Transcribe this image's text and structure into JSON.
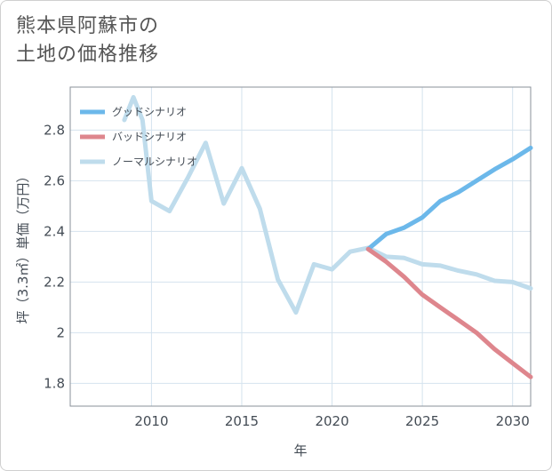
{
  "title_line1": "熊本県阿蘇市の",
  "title_line2": "土地の価格推移",
  "chart_data": {
    "type": "line",
    "xlabel": "年",
    "ylabel": "坪（3.3㎡）単価（万円）",
    "xlim": [
      2005.5,
      2031
    ],
    "ylim": [
      1.71,
      2.97
    ],
    "xticks": [
      2010,
      2015,
      2020,
      2025,
      2030
    ],
    "yticks": [
      1.8,
      2,
      2.2,
      2.4,
      2.6,
      2.8
    ],
    "ytick_labels": [
      "1.8",
      "2",
      "2.2",
      "2.4",
      "2.6",
      "2.8"
    ],
    "legend_position": "top-left",
    "series": [
      {
        "name": "グッドシナリオ",
        "color": "#6cb8ea",
        "x": [
          2022,
          2023,
          2024,
          2025,
          2026,
          2027,
          2028,
          2029,
          2030,
          2031
        ],
        "y": [
          2.33,
          2.39,
          2.415,
          2.455,
          2.52,
          2.555,
          2.6,
          2.645,
          2.685,
          2.73
        ]
      },
      {
        "name": "バッドシナリオ",
        "color": "#de868d",
        "x": [
          2022,
          2023,
          2024,
          2025,
          2026,
          2027,
          2028,
          2029,
          2030,
          2031
        ],
        "y": [
          2.33,
          2.28,
          2.22,
          2.15,
          2.1,
          2.05,
          2.0,
          1.935,
          1.88,
          1.825
        ]
      },
      {
        "name": "ノーマルシナリオ",
        "color": "#bfdcec",
        "x": [
          2008.5,
          2009,
          2009.5,
          2010,
          2011,
          2012,
          2013,
          2014,
          2015,
          2016,
          2017,
          2018,
          2019,
          2020,
          2021,
          2022,
          2023,
          2024,
          2025,
          2026,
          2027,
          2028,
          2029,
          2030,
          2031
        ],
        "y": [
          2.84,
          2.93,
          2.84,
          2.52,
          2.48,
          2.61,
          2.75,
          2.51,
          2.65,
          2.49,
          2.21,
          2.08,
          2.27,
          2.25,
          2.32,
          2.335,
          2.3,
          2.295,
          2.27,
          2.265,
          2.245,
          2.23,
          2.205,
          2.2,
          2.175
        ]
      }
    ]
  }
}
